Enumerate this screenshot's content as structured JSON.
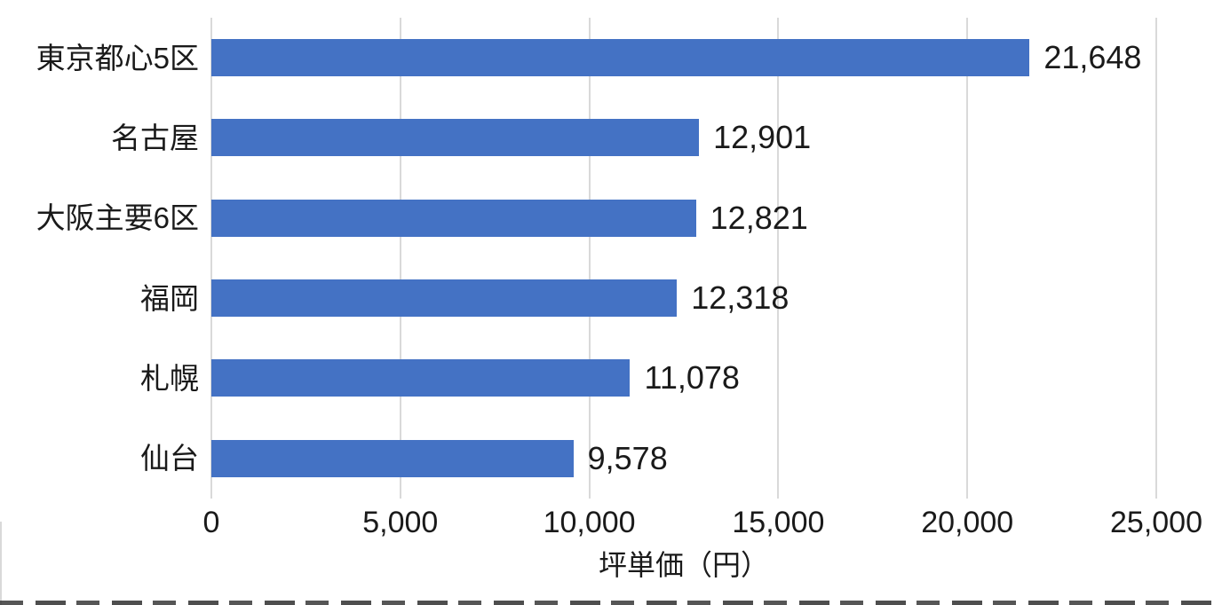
{
  "chart_data": {
    "type": "bar",
    "orientation": "horizontal",
    "title": "",
    "xlabel": "坪単価（円）",
    "ylabel": "",
    "categories": [
      "東京都心5区",
      "名古屋",
      "大阪主要6区",
      "福岡",
      "札幌",
      "仙台"
    ],
    "values": [
      21648,
      12901,
      12821,
      12318,
      11078,
      9578
    ],
    "value_labels": [
      "21,648",
      "12,901",
      "12,821",
      "12,318",
      "11,078",
      "9,578"
    ],
    "x_ticks": [
      "0",
      "5,000",
      "10,000",
      "15,000",
      "20,000",
      "25,000"
    ],
    "xlim": [
      0,
      25000
    ],
    "grid": true,
    "legend": "none",
    "bar_color": "#4472C4",
    "gridline_color": "#D9D9D9",
    "text_color": "#1a1a1a"
  }
}
